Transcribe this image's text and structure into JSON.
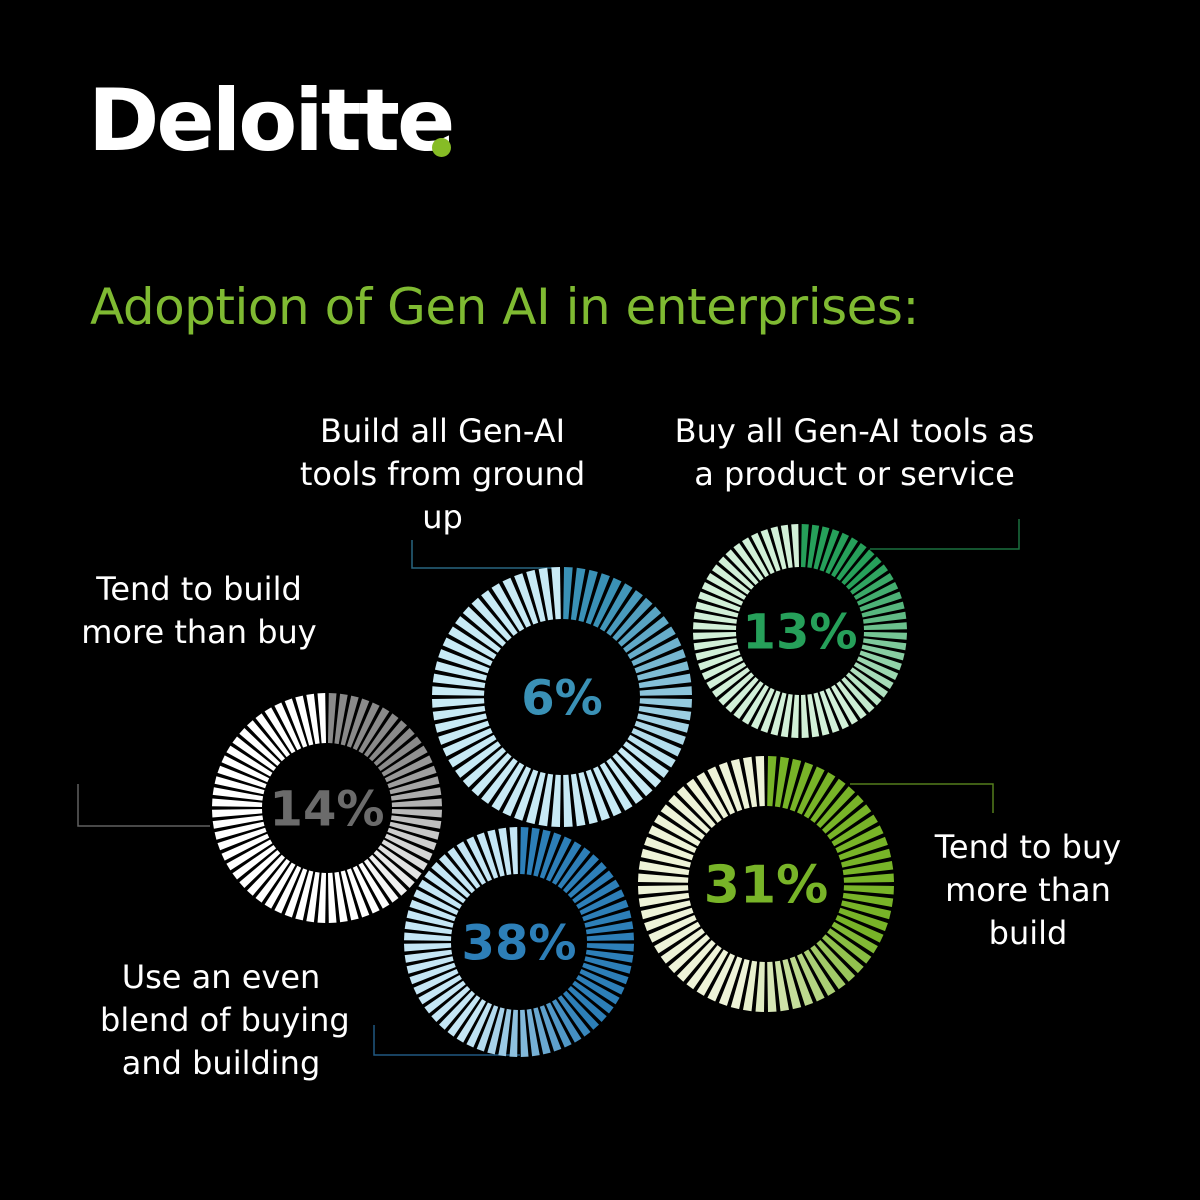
{
  "brand": {
    "name": "Deloitte",
    "dot_color": "#86bc25"
  },
  "title": "Adoption of Gen AI in enterprises:",
  "chart_data": {
    "type": "pie",
    "title": "Adoption of Gen AI in enterprises:",
    "slices": [
      {
        "label": "Tend to build more than buy",
        "value": 14,
        "value_label": "14%",
        "base_color": "#ffffff",
        "accent_color": "#8a8a8a",
        "text_color": "#6b6b6b"
      },
      {
        "label": "Build all Gen-AI tools from ground up",
        "value": 6,
        "value_label": "6%",
        "base_color": "#c8eaf5",
        "accent_color": "#3a91b6",
        "text_color": "#3a91b6"
      },
      {
        "label": "Buy all Gen-AI tools as a product or service",
        "value": 13,
        "value_label": "13%",
        "base_color": "#d2f0d8",
        "accent_color": "#26a05a",
        "text_color": "#26a05a"
      },
      {
        "label": "Use an even blend of buying and building",
        "value": 38,
        "value_label": "38%",
        "base_color": "#c5e6f5",
        "accent_color": "#2d7fb8",
        "text_color": "#2d7fb8"
      },
      {
        "label": "Tend to buy more than build",
        "value": 31,
        "value_label": "31%",
        "base_color": "#eef3d8",
        "accent_color": "#78b428",
        "text_color": "#78b428"
      }
    ]
  },
  "labels": {
    "build_more": [
      "Tend to build",
      "more than buy"
    ],
    "build_all": [
      "Build all Gen-AI",
      "tools from ground",
      "up"
    ],
    "buy_all": [
      "Buy all Gen-AI tools as",
      "a product or service"
    ],
    "even_blend": [
      "Use an even",
      "blend of buying",
      "and building"
    ],
    "buy_more": [
      "Tend to buy",
      "more than",
      "build"
    ]
  }
}
